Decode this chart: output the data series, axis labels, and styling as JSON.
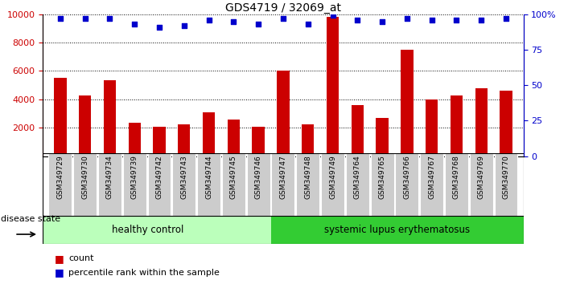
{
  "title": "GDS4719 / 32069_at",
  "samples": [
    "GSM349729",
    "GSM349730",
    "GSM349734",
    "GSM349739",
    "GSM349742",
    "GSM349743",
    "GSM349744",
    "GSM349745",
    "GSM349746",
    "GSM349747",
    "GSM349748",
    "GSM349749",
    "GSM349764",
    "GSM349765",
    "GSM349766",
    "GSM349767",
    "GSM349768",
    "GSM349769",
    "GSM349770"
  ],
  "counts": [
    5500,
    4300,
    5350,
    2350,
    2050,
    2250,
    3100,
    2600,
    2100,
    6050,
    2250,
    9800,
    3600,
    2700,
    7500,
    4000,
    4250,
    4800,
    4600
  ],
  "percentiles": [
    97,
    97,
    97,
    93,
    91,
    92,
    96,
    95,
    93,
    97,
    93,
    99,
    96,
    95,
    97,
    96,
    96,
    96,
    97
  ],
  "healthy_count": 9,
  "disease_groups": [
    "healthy control",
    "systemic lupus erythematosus"
  ],
  "ylim_left": [
    0,
    10000
  ],
  "ylim_right": [
    0,
    100
  ],
  "yticks_left": [
    2000,
    4000,
    6000,
    8000,
    10000
  ],
  "yticks_right": [
    0,
    25,
    50,
    75,
    100
  ],
  "bar_color": "#cc0000",
  "dot_color": "#0000cc",
  "healthy_bg": "#bbffbb",
  "sle_bg": "#33cc33",
  "label_bg": "#cccccc",
  "legend_count_label": "count",
  "legend_pct_label": "percentile rank within the sample",
  "disease_state_label": "disease state",
  "background_color": "#ffffff"
}
